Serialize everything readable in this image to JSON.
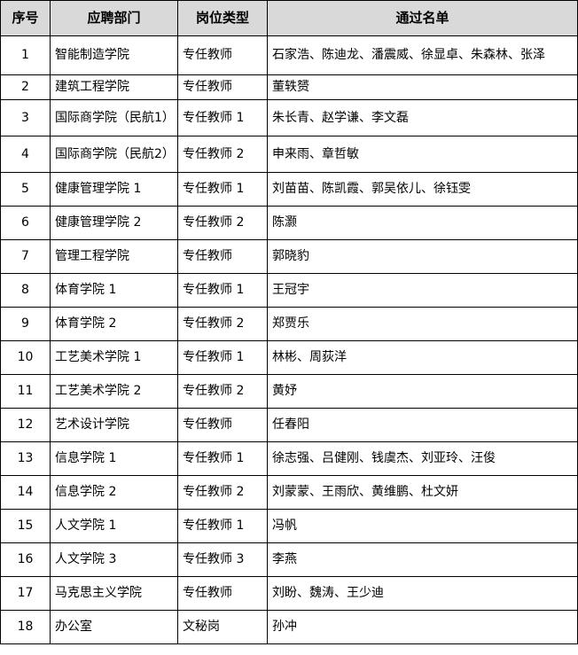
{
  "table": {
    "headers": [
      "序号",
      "应聘部门",
      "岗位类型",
      "通过名单"
    ],
    "rows": [
      {
        "no": "1",
        "dept": "智能制造学院",
        "type": "专任教师",
        "names": "石家浩、陈迪龙、潘震威、徐显卓、朱森林、张泽"
      },
      {
        "no": "2",
        "dept": "建筑工程学院",
        "type": "专任教师",
        "names": "董轶赟"
      },
      {
        "no": "3",
        "dept": "国际商学院（民航1）",
        "type": "专任教师 1",
        "names": "朱长青、赵学谦、李文磊"
      },
      {
        "no": "4",
        "dept": "国际商学院（民航2）",
        "type": "专任教师 2",
        "names": "申来雨、章哲敏"
      },
      {
        "no": "5",
        "dept": "健康管理学院 1",
        "type": "专任教师 1",
        "names": "刘苗苗、陈凯霞、郭吴依儿、徐钰雯"
      },
      {
        "no": "6",
        "dept": "健康管理学院 2",
        "type": "专任教师 2",
        "names": "陈灏"
      },
      {
        "no": "7",
        "dept": "管理工程学院",
        "type": "专任教师",
        "names": "郭晓豹"
      },
      {
        "no": "8",
        "dept": "体育学院 1",
        "type": "专任教师 1",
        "names": "王冠宇"
      },
      {
        "no": "9",
        "dept": "体育学院 2",
        "type": "专任教师 2",
        "names": "郑贾乐"
      },
      {
        "no": "10",
        "dept": "工艺美术学院 1",
        "type": "专任教师 1",
        "names": "林彬、周荻洋"
      },
      {
        "no": "11",
        "dept": "工艺美术学院 2",
        "type": "专任教师 2",
        "names": "黄妤"
      },
      {
        "no": "12",
        "dept": "艺术设计学院",
        "type": "专任教师",
        "names": "任春阳"
      },
      {
        "no": "13",
        "dept": "信息学院 1",
        "type": "专任教师 1",
        "names": "徐志强、吕健刚、钱虞杰、刘亚玲、汪俊"
      },
      {
        "no": "14",
        "dept": "信息学院 2",
        "type": "专任教师 2",
        "names": "刘蒙蒙、王雨欣、黄维鹏、杜文妍"
      },
      {
        "no": "15",
        "dept": "人文学院 1",
        "type": "专任教师 1",
        "names": "冯帆"
      },
      {
        "no": "16",
        "dept": "人文学院 3",
        "type": "专任教师 3",
        "names": "李燕"
      },
      {
        "no": "17",
        "dept": "马克思主义学院",
        "type": "专任教师",
        "names": "刘盼、魏涛、王少迪"
      },
      {
        "no": "18",
        "dept": "办公室",
        "type": "文秘岗",
        "names": "孙冲"
      }
    ]
  }
}
